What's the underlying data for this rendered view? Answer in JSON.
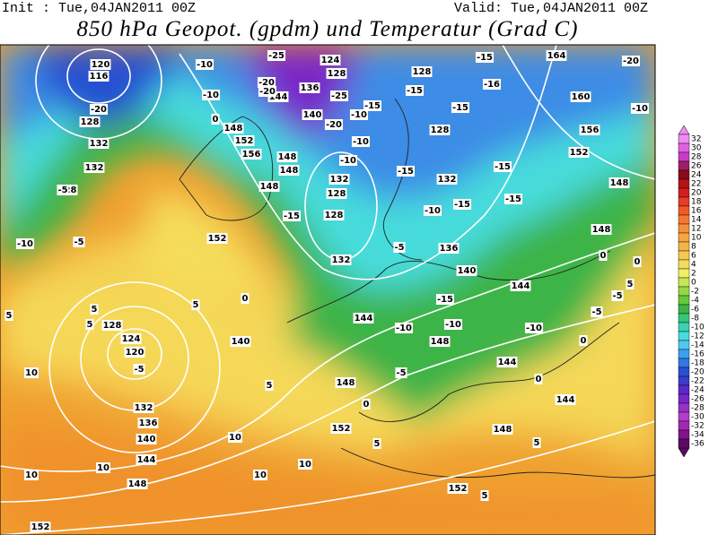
{
  "header": {
    "init": "Init : Tue,04JAN2011 00Z",
    "valid": "Valid: Tue,04JAN2011 00Z",
    "title": "850 hPa Geopot. (gpdm) und Temperatur (Grad C)"
  },
  "colorbar": {
    "ticks": [
      32,
      30,
      28,
      26,
      24,
      22,
      20,
      18,
      16,
      14,
      12,
      10,
      8,
      6,
      4,
      2,
      0,
      -2,
      -4,
      -6,
      -8,
      -10,
      -12,
      -14,
      -16,
      -18,
      -20,
      -22,
      -24,
      -26,
      -28,
      -30,
      -32,
      -34,
      -36
    ],
    "colors": [
      "#f08cf0",
      "#e060e0",
      "#c83cc8",
      "#a01e64",
      "#8c0a1e",
      "#b41414",
      "#d21e1e",
      "#e63c28",
      "#f05a28",
      "#f57832",
      "#f5913c",
      "#f5a541",
      "#f5b446",
      "#f5c850",
      "#f5dc5a",
      "#f0f064",
      "#c8e650",
      "#96d746",
      "#64c83c",
      "#3cb446",
      "#32c878",
      "#3cd2b4",
      "#46dcdc",
      "#50c8f0",
      "#3ca0f0",
      "#3278e6",
      "#2850d2",
      "#3c3cc8",
      "#5a28c8",
      "#7828c8",
      "#9632c8",
      "#b43cc8",
      "#a028b4",
      "#82148c",
      "#5a0a64"
    ]
  },
  "map_labels": [
    120,
    116,
    -20,
    128,
    132,
    132,
    128,
    -10,
    128,
    124,
    120,
    132,
    136,
    140,
    144,
    148,
    152,
    140,
    148,
    152,
    148,
    152,
    144,
    148,
    144,
    144,
    140,
    136,
    132,
    128,
    128,
    132,
    128,
    132,
    128,
    124,
    128,
    136,
    140,
    144,
    148,
    152,
    156,
    148,
    148,
    148,
    152,
    164,
    160,
    156,
    152,
    148,
    148,
    144,
    -20,
    -10,
    -15,
    -15,
    -15,
    -15,
    -15,
    -16,
    -15,
    -10,
    -15,
    -5,
    -10,
    -15,
    -10,
    -5,
    -10,
    0,
    0,
    5,
    5,
    5,
    10,
    10,
    10,
    10,
    10,
    10,
    5,
    5,
    5,
    5,
    5,
    -5,
    0,
    0,
    -10,
    -10,
    -25,
    -20,
    -20,
    -25,
    -20,
    -10,
    -15,
    -10,
    -10,
    -15,
    -5,
    -5,
    0,
    0,
    -5,
    5,
    0,
    -5
  ]
}
